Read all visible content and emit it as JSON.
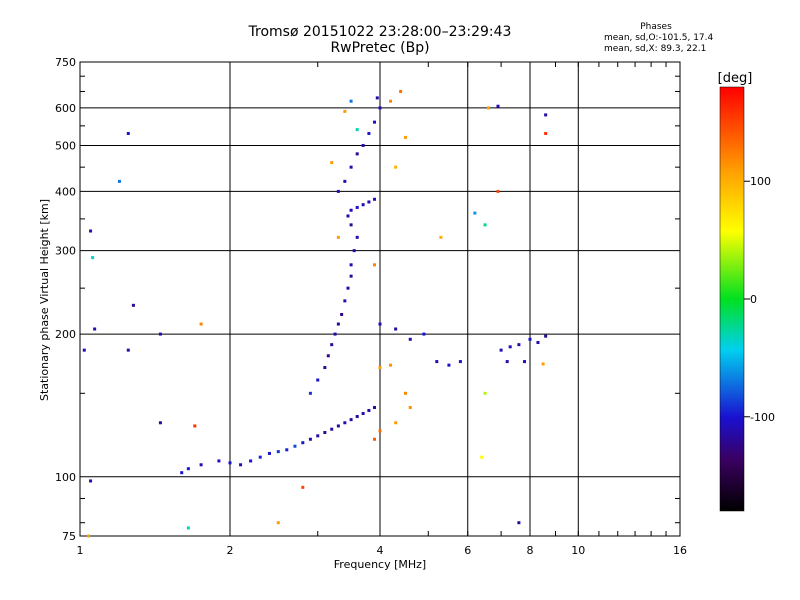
{
  "header": {
    "title": "Tromsø 20151022 23:28:00–23:29:43",
    "subtitle": "RwPretec (Bp)"
  },
  "stats": {
    "title": "Phases",
    "line_o": "mean, sd,O:-101.5, 17.4",
    "line_x": "mean, sd,X:  89.3, 22.1"
  },
  "colorbar": {
    "label": "[deg]",
    "ticks": [
      100,
      0,
      -100
    ],
    "range": [
      -180,
      180
    ]
  },
  "chart_data": {
    "type": "scatter",
    "xlabel": "Frequency [MHz]",
    "ylabel": "Stationary phase Virtual Height [km]",
    "xscale": "log",
    "yscale": "log",
    "xlim": [
      1,
      16
    ],
    "ylim": [
      75,
      750
    ],
    "xticks": [
      1,
      2,
      4,
      6,
      8,
      10,
      16
    ],
    "yticks": [
      75,
      100,
      200,
      300,
      400,
      500,
      600,
      750
    ],
    "grid": true,
    "color_by": "phase [deg]",
    "series": [
      {
        "values": [
          {
            "x": 1.6,
            "y": 102,
            "p": -100
          },
          {
            "x": 1.65,
            "y": 104,
            "p": -100
          },
          {
            "x": 1.75,
            "y": 106,
            "p": -110
          },
          {
            "x": 1.9,
            "y": 108,
            "p": -105
          },
          {
            "x": 2.0,
            "y": 107,
            "p": -100
          },
          {
            "x": 2.1,
            "y": 106,
            "p": -110
          },
          {
            "x": 2.2,
            "y": 108,
            "p": -100
          },
          {
            "x": 2.3,
            "y": 110,
            "p": -95
          },
          {
            "x": 2.4,
            "y": 112,
            "p": -100
          },
          {
            "x": 2.5,
            "y": 113,
            "p": -90
          },
          {
            "x": 2.6,
            "y": 114,
            "p": -95
          },
          {
            "x": 2.7,
            "y": 116,
            "p": -85
          },
          {
            "x": 2.8,
            "y": 118,
            "p": -100
          },
          {
            "x": 2.9,
            "y": 120,
            "p": -110
          },
          {
            "x": 3.0,
            "y": 122,
            "p": -115
          },
          {
            "x": 3.1,
            "y": 124,
            "p": -120
          },
          {
            "x": 3.2,
            "y": 126,
            "p": -115
          },
          {
            "x": 3.3,
            "y": 128,
            "p": -120
          },
          {
            "x": 3.4,
            "y": 130,
            "p": -110
          },
          {
            "x": 3.5,
            "y": 132,
            "p": -115
          },
          {
            "x": 3.6,
            "y": 134,
            "p": -120
          },
          {
            "x": 3.7,
            "y": 136,
            "p": -110
          },
          {
            "x": 3.8,
            "y": 138,
            "p": -115
          },
          {
            "x": 3.9,
            "y": 140,
            "p": -120
          },
          {
            "x": 2.9,
            "y": 150,
            "p": -90
          },
          {
            "x": 3.0,
            "y": 160,
            "p": -100
          },
          {
            "x": 3.1,
            "y": 170,
            "p": -120
          },
          {
            "x": 3.15,
            "y": 180,
            "p": -125
          },
          {
            "x": 3.2,
            "y": 190,
            "p": -120
          },
          {
            "x": 3.25,
            "y": 200,
            "p": -115
          },
          {
            "x": 3.3,
            "y": 210,
            "p": -120
          },
          {
            "x": 3.35,
            "y": 220,
            "p": -125
          },
          {
            "x": 3.4,
            "y": 235,
            "p": -110
          },
          {
            "x": 3.45,
            "y": 250,
            "p": -115
          },
          {
            "x": 3.5,
            "y": 265,
            "p": -120
          },
          {
            "x": 3.5,
            "y": 280,
            "p": -110
          },
          {
            "x": 3.55,
            "y": 300,
            "p": -115
          },
          {
            "x": 3.6,
            "y": 320,
            "p": -110
          },
          {
            "x": 3.5,
            "y": 340,
            "p": -120
          },
          {
            "x": 3.45,
            "y": 355,
            "p": -115
          },
          {
            "x": 3.5,
            "y": 365,
            "p": -110
          },
          {
            "x": 3.6,
            "y": 370,
            "p": -100
          },
          {
            "x": 3.7,
            "y": 375,
            "p": -110
          },
          {
            "x": 3.8,
            "y": 380,
            "p": -115
          },
          {
            "x": 3.9,
            "y": 385,
            "p": -110
          },
          {
            "x": 3.3,
            "y": 400,
            "p": -105
          },
          {
            "x": 3.4,
            "y": 420,
            "p": -110
          },
          {
            "x": 3.5,
            "y": 450,
            "p": -115
          },
          {
            "x": 3.6,
            "y": 480,
            "p": -120
          },
          {
            "x": 3.7,
            "y": 500,
            "p": -110
          },
          {
            "x": 3.8,
            "y": 530,
            "p": -100
          },
          {
            "x": 3.9,
            "y": 560,
            "p": -105
          },
          {
            "x": 4.0,
            "y": 600,
            "p": -110
          },
          {
            "x": 3.95,
            "y": 630,
            "p": -115
          },
          {
            "x": 3.5,
            "y": 620,
            "p": -70
          },
          {
            "x": 3.4,
            "y": 590,
            "p": 110
          },
          {
            "x": 3.6,
            "y": 540,
            "p": -30
          },
          {
            "x": 4.2,
            "y": 620,
            "p": 120
          },
          {
            "x": 4.4,
            "y": 650,
            "p": 130
          },
          {
            "x": 4.5,
            "y": 520,
            "p": 110
          },
          {
            "x": 4.3,
            "y": 450,
            "p": 100
          },
          {
            "x": 3.2,
            "y": 460,
            "p": 110
          },
          {
            "x": 3.3,
            "y": 320,
            "p": 110
          },
          {
            "x": 3.9,
            "y": 280,
            "p": 120
          },
          {
            "x": 4.0,
            "y": 210,
            "p": -110
          },
          {
            "x": 4.3,
            "y": 205,
            "p": -115
          },
          {
            "x": 4.6,
            "y": 195,
            "p": -110
          },
          {
            "x": 4.9,
            "y": 200,
            "p": -100
          },
          {
            "x": 5.2,
            "y": 175,
            "p": -110
          },
          {
            "x": 5.5,
            "y": 172,
            "p": -105
          },
          {
            "x": 5.8,
            "y": 175,
            "p": -100
          },
          {
            "x": 4.0,
            "y": 170,
            "p": 110
          },
          {
            "x": 4.2,
            "y": 172,
            "p": 115
          },
          {
            "x": 4.5,
            "y": 150,
            "p": 120
          },
          {
            "x": 4.6,
            "y": 140,
            "p": 115
          },
          {
            "x": 4.3,
            "y": 130,
            "p": 110
          },
          {
            "x": 4.0,
            "y": 125,
            "p": 130
          },
          {
            "x": 3.9,
            "y": 120,
            "p": 140
          },
          {
            "x": 7.0,
            "y": 185,
            "p": -110
          },
          {
            "x": 7.3,
            "y": 188,
            "p": -105
          },
          {
            "x": 7.6,
            "y": 190,
            "p": -110
          },
          {
            "x": 8.0,
            "y": 195,
            "p": -100
          },
          {
            "x": 8.3,
            "y": 192,
            "p": -110
          },
          {
            "x": 8.6,
            "y": 198,
            "p": -120
          },
          {
            "x": 7.2,
            "y": 175,
            "p": -110
          },
          {
            "x": 7.8,
            "y": 175,
            "p": -105
          },
          {
            "x": 8.5,
            "y": 173,
            "p": 110
          },
          {
            "x": 6.5,
            "y": 150,
            "p": 40
          },
          {
            "x": 6.6,
            "y": 600,
            "p": 110
          },
          {
            "x": 6.9,
            "y": 605,
            "p": -110
          },
          {
            "x": 8.6,
            "y": 580,
            "p": -115
          },
          {
            "x": 8.6,
            "y": 530,
            "p": 160
          },
          {
            "x": 6.9,
            "y": 400,
            "p": 150
          },
          {
            "x": 6.2,
            "y": 360,
            "p": -60
          },
          {
            "x": 6.5,
            "y": 340,
            "p": -20
          },
          {
            "x": 1.05,
            "y": 330,
            "p": -110
          },
          {
            "x": 1.06,
            "y": 290,
            "p": -40
          },
          {
            "x": 1.07,
            "y": 205,
            "p": -110
          },
          {
            "x": 1.25,
            "y": 530,
            "p": -100
          },
          {
            "x": 1.2,
            "y": 420,
            "p": -70
          },
          {
            "x": 1.25,
            "y": 185,
            "p": -115
          },
          {
            "x": 1.28,
            "y": 230,
            "p": -120
          },
          {
            "x": 1.45,
            "y": 200,
            "p": -110
          },
          {
            "x": 1.45,
            "y": 130,
            "p": -115
          },
          {
            "x": 1.7,
            "y": 128,
            "p": 160
          },
          {
            "x": 1.02,
            "y": 185,
            "p": -110
          },
          {
            "x": 1.04,
            "y": 75,
            "p": 110
          },
          {
            "x": 1.05,
            "y": 98,
            "p": -110
          },
          {
            "x": 1.75,
            "y": 210,
            "p": 120
          },
          {
            "x": 1.65,
            "y": 78,
            "p": -30
          },
          {
            "x": 2.5,
            "y": 80,
            "p": 110
          },
          {
            "x": 2.8,
            "y": 95,
            "p": 150
          },
          {
            "x": 6.4,
            "y": 110,
            "p": 60
          },
          {
            "x": 7.6,
            "y": 80,
            "p": -120
          },
          {
            "x": 5.3,
            "y": 320,
            "p": 100
          }
        ]
      }
    ]
  }
}
